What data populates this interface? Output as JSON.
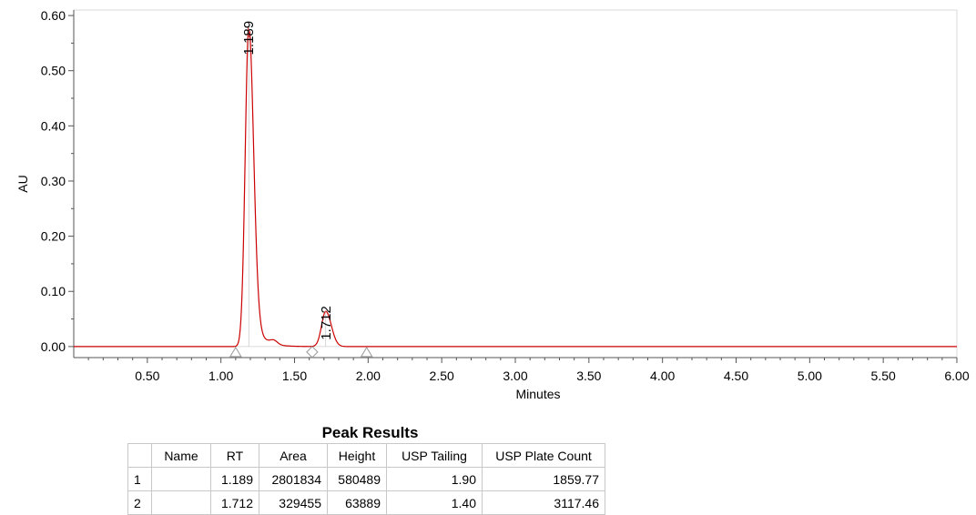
{
  "chart_data": {
    "type": "line",
    "title": "",
    "xlabel": "Minutes",
    "ylabel": "AU",
    "xlim": [
      0,
      6.0
    ],
    "ylim": [
      -0.02,
      0.61
    ],
    "x_ticks": [
      "0.50",
      "1.00",
      "1.50",
      "2.00",
      "2.50",
      "3.00",
      "3.50",
      "4.00",
      "4.50",
      "5.00",
      "5.50",
      "6.00"
    ],
    "y_ticks": [
      "0.00",
      "0.10",
      "0.20",
      "0.30",
      "0.40",
      "0.50",
      "0.60"
    ],
    "grid": false,
    "line_color": "#cc0000",
    "baseline_au": 0.0,
    "peaks": [
      {
        "rt": 1.189,
        "label": "1.189",
        "height_au": 0.580489,
        "width_min": 0.024,
        "tail_tau": 0.055,
        "tail_amp": 0.08
      },
      {
        "rt": 1.712,
        "label": "1.712",
        "height_au": 0.063889,
        "width_min": 0.028,
        "tail_tau": 0.03,
        "tail_amp": 0.0
      }
    ],
    "integration_markers": [
      {
        "x": 1.1,
        "shape": "triangle"
      },
      {
        "x": 1.62,
        "shape": "diamond"
      },
      {
        "x": 1.99,
        "shape": "triangle"
      }
    ]
  },
  "table": {
    "title": "Peak Results",
    "columns": [
      "",
      "Name",
      "RT",
      "Area",
      "Height",
      "USP Tailing",
      "USP Plate Count"
    ],
    "rows": [
      [
        "1",
        "",
        "1.189",
        "2801834",
        "580489",
        "1.90",
        "1859.77"
      ],
      [
        "2",
        "",
        "1.712",
        "329455",
        "63889",
        "1.40",
        "3117.46"
      ]
    ]
  }
}
